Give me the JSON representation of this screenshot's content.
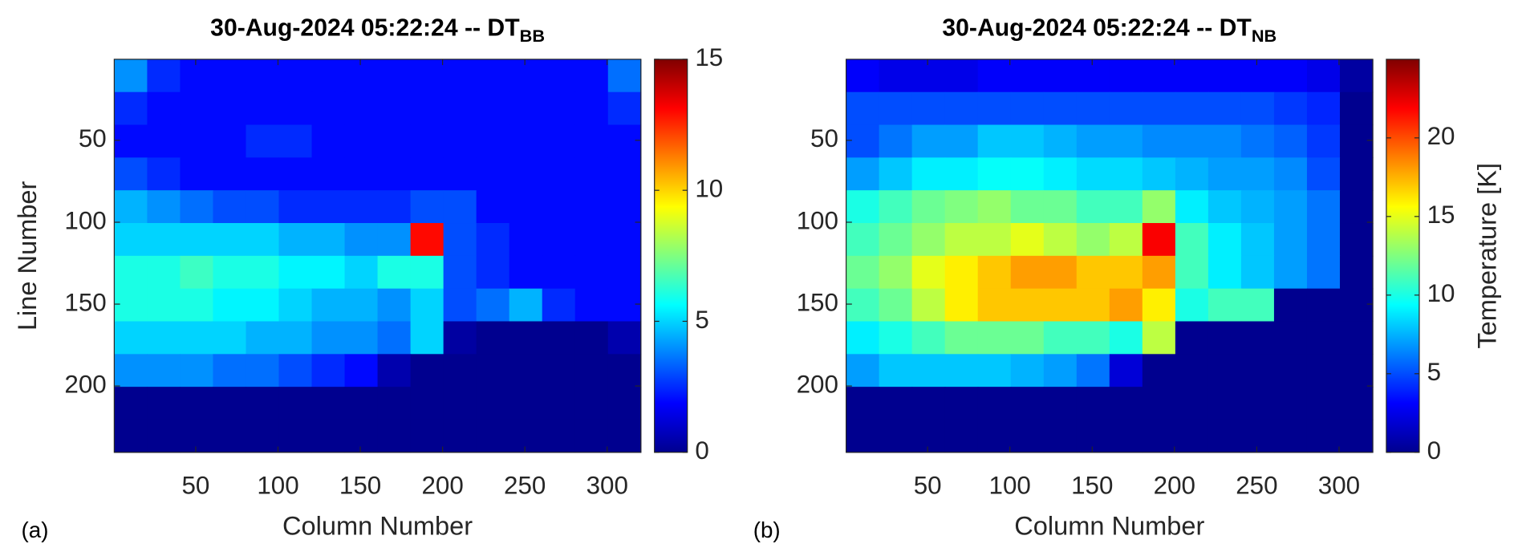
{
  "chart_data": [
    {
      "type": "heatmap",
      "title": "30-Aug-2024 05:22:24 -- DT",
      "title_subscript": "BB",
      "xlabel": "Column Number",
      "ylabel": "Line Number",
      "panel_label": "(a)",
      "colormap": "jet",
      "y_direction": "reverse",
      "xlim": [
        0.5,
        320.5
      ],
      "ylim": [
        0.5,
        240.5
      ],
      "xticks": [
        50,
        100,
        150,
        200,
        250,
        300
      ],
      "yticks": [
        50,
        100,
        150,
        200
      ],
      "clim": [
        0,
        15
      ],
      "cticks": [
        0,
        5,
        10,
        15
      ],
      "x": [
        10.5,
        30.5,
        50.5,
        70.5,
        90.5,
        110.5,
        130.5,
        150.5,
        170.5,
        190.5,
        210.5,
        230.5,
        250.5,
        270.5,
        290.5,
        310.5
      ],
      "y": [
        10.5,
        30.5,
        50.5,
        70.5,
        90.5,
        110.5,
        130.5,
        150.5,
        170.5,
        190.5,
        210.5,
        230.5
      ],
      "z": [
        [
          4,
          2.5,
          2,
          2,
          2,
          2,
          2,
          2,
          2,
          2,
          2,
          2,
          2,
          2,
          2,
          3.5
        ],
        [
          2.5,
          2,
          2,
          2,
          2,
          2,
          2,
          2,
          2,
          2,
          2,
          2,
          2,
          2,
          2,
          2.5
        ],
        [
          2,
          2,
          2,
          2,
          2.5,
          2.5,
          2,
          2,
          2,
          2,
          2,
          2,
          2,
          2,
          2,
          2
        ],
        [
          3,
          2.5,
          2,
          2,
          2,
          2,
          2,
          2,
          2,
          2,
          2,
          2,
          2,
          2,
          2,
          2
        ],
        [
          4.5,
          4,
          3.5,
          3,
          3,
          2.5,
          2.5,
          2.5,
          2.5,
          3,
          3,
          2,
          2,
          2,
          2,
          2
        ],
        [
          5,
          5,
          5,
          5,
          5,
          4.5,
          4.5,
          4,
          4,
          13,
          3,
          2.5,
          2,
          2,
          2,
          2
        ],
        [
          6,
          6,
          6.5,
          6,
          6,
          5.5,
          5.5,
          5,
          6,
          6,
          3,
          2.5,
          2,
          2,
          2,
          2
        ],
        [
          6,
          6,
          6,
          5.5,
          5.5,
          5,
          4.5,
          4.5,
          4,
          5,
          3,
          3.5,
          4.5,
          2.5,
          2,
          2
        ],
        [
          5,
          5,
          5,
          5,
          4.5,
          4.5,
          4,
          4,
          3.5,
          5,
          0.3,
          0,
          0,
          0,
          0,
          0.5
        ],
        [
          4,
          4,
          4,
          3.5,
          3.5,
          3,
          2.5,
          2,
          0.5,
          0,
          0,
          0,
          0,
          0,
          0,
          0
        ],
        [
          0,
          0,
          0,
          0,
          0,
          0,
          0,
          0,
          0,
          0,
          0,
          0,
          0,
          0,
          0,
          0
        ],
        [
          0,
          0,
          0,
          0,
          0,
          0,
          0,
          0,
          0,
          0,
          0,
          0,
          0,
          0,
          0,
          0
        ]
      ]
    },
    {
      "type": "heatmap",
      "title": "30-Aug-2024 05:22:24 -- DT",
      "title_subscript": "NB",
      "xlabel": "Column Number",
      "colorbar_label": "Temperature [K]",
      "panel_label": "(b)",
      "colormap": "jet",
      "y_direction": "reverse",
      "xlim": [
        0.5,
        320.5
      ],
      "ylim": [
        0.5,
        240.5
      ],
      "xticks": [
        50,
        100,
        150,
        200,
        250,
        300
      ],
      "yticks": [
        50,
        100,
        150,
        200
      ],
      "clim": [
        0,
        25
      ],
      "cticks": [
        0,
        5,
        10,
        15,
        20
      ],
      "x": [
        10.5,
        30.5,
        50.5,
        70.5,
        90.5,
        110.5,
        130.5,
        150.5,
        170.5,
        190.5,
        210.5,
        230.5,
        250.5,
        270.5,
        290.5,
        310.5
      ],
      "y": [
        10.5,
        30.5,
        50.5,
        70.5,
        90.5,
        110.5,
        130.5,
        150.5,
        170.5,
        190.5,
        210.5,
        230.5
      ],
      "z": [
        [
          3,
          2.5,
          2.5,
          2.5,
          3,
          3,
          3,
          3,
          3,
          3,
          3,
          3,
          3,
          3,
          2.5,
          0.5
        ],
        [
          5,
          5,
          5,
          5,
          5,
          5,
          5,
          5,
          5,
          5,
          5,
          5,
          5,
          4.5,
          4,
          0
        ],
        [
          5,
          6,
          7,
          7,
          8,
          8,
          7.5,
          7,
          7,
          6.5,
          6.5,
          6.5,
          6,
          5.5,
          4.5,
          0
        ],
        [
          7,
          8,
          9,
          9,
          9.5,
          9.5,
          9,
          8.5,
          8.5,
          8,
          7.5,
          7,
          7,
          6.5,
          5,
          0
        ],
        [
          10,
          11,
          12,
          12.5,
          13,
          12,
          12,
          11,
          11,
          13,
          9,
          8,
          7.5,
          7,
          6,
          0
        ],
        [
          11,
          12,
          13,
          14,
          14,
          15,
          14,
          13,
          14,
          22,
          11,
          9,
          8,
          7,
          6,
          0
        ],
        [
          12,
          13,
          15,
          16,
          17,
          18,
          18,
          17,
          17,
          18,
          11,
          9,
          8,
          7,
          6,
          0
        ],
        [
          11,
          12,
          14,
          16,
          17,
          17,
          17,
          17,
          18,
          16,
          10,
          11,
          11,
          0,
          0,
          0
        ],
        [
          9,
          10,
          11,
          12,
          12,
          12,
          11,
          11,
          10,
          14,
          0,
          0,
          0,
          0,
          0,
          0
        ],
        [
          7,
          8,
          8,
          8,
          8,
          7.5,
          7,
          6,
          2,
          0,
          0,
          0,
          0,
          0,
          0,
          0
        ],
        [
          0,
          0,
          0,
          0,
          0,
          0,
          0,
          0,
          0,
          0,
          0,
          0,
          0,
          0,
          0,
          0
        ],
        [
          0,
          0,
          0,
          0,
          0,
          0,
          0,
          0,
          0,
          0,
          0,
          0,
          0,
          0,
          0,
          0
        ]
      ]
    }
  ]
}
